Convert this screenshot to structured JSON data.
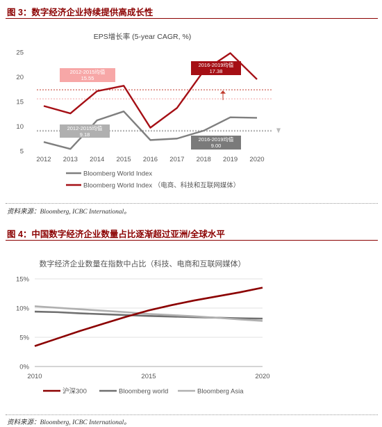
{
  "fig1": {
    "heading": "图 3：数字经济企业持续提供高成长性",
    "source": "资料来源：Bloomberg, ICBC International。",
    "chart_data": {
      "type": "line",
      "title": "EPS增长率 (5-year CAGR, %)",
      "x": [
        2012,
        2013,
        2014,
        2015,
        2016,
        2017,
        2018,
        2019,
        2020
      ],
      "ylim": [
        5,
        25
      ],
      "yticks": [
        5,
        10,
        15,
        20,
        25
      ],
      "grid": false,
      "legend_position": "bottom-left",
      "series": [
        {
          "name": "Bloomberg World Index",
          "color": "#7f7f7f",
          "values": [
            6.8,
            5.4,
            11.2,
            13.0,
            7.2,
            7.5,
            9.1,
            11.8,
            11.7
          ]
        },
        {
          "name": "Bloomberg World Index （电商、科技和互联网媒体）",
          "color": "#a50f15",
          "values": [
            14.1,
            12.6,
            17.1,
            18.2,
            9.7,
            13.7,
            21.2,
            24.8,
            19.5
          ]
        }
      ],
      "reference_lines": [
        {
          "value": 17.38,
          "color": "#c0392b"
        },
        {
          "value": 15.55,
          "color": "#f2a3a3"
        },
        {
          "value": 9.18,
          "color": "#bbbbbb"
        },
        {
          "value": 9.0,
          "color": "#9a9a9a"
        }
      ],
      "annotations": [
        {
          "text": "2012-2015均值\n15.55",
          "bg": "#f7a7a7",
          "fg": "#ffffff"
        },
        {
          "text": "2016-2019均值\n17.38",
          "bg": "#a50f15",
          "fg": "#ffffff"
        },
        {
          "text": "2012-2015均值\n9.18",
          "bg": "#b0b0b0",
          "fg": "#ffffff"
        },
        {
          "text": "2016-2019均值\n9.00",
          "bg": "#7a7a7a",
          "fg": "#ffffff"
        }
      ]
    }
  },
  "fig2": {
    "heading": "图 4：中国数字经济企业数量占比逐渐超过亚洲/全球水平",
    "source": "资料来源：Bloomberg, ICBC International。",
    "chart_data": {
      "type": "line",
      "title": "数字经济企业数量在指数中占比（科技、电商和互联网媒体）",
      "x": [
        2010,
        2015,
        2020
      ],
      "ylim": [
        0,
        15
      ],
      "yticks": [
        "0%",
        "5%",
        "10%",
        "15%"
      ],
      "grid": true,
      "legend_position": "bottom",
      "series": [
        {
          "name": "沪深300",
          "color": "#8b0000",
          "points": [
            [
              2010,
              3.5
            ],
            [
              2011,
              4.8
            ],
            [
              2012,
              6.1
            ],
            [
              2013,
              7.3
            ],
            [
              2014,
              8.5
            ],
            [
              2015,
              9.6
            ],
            [
              2016,
              10.5
            ],
            [
              2017,
              11.3
            ],
            [
              2018,
              12.0
            ],
            [
              2019,
              12.7
            ],
            [
              2020,
              13.5
            ]
          ]
        },
        {
          "name": "Bloomberg world",
          "color": "#707070",
          "points": [
            [
              2010,
              9.4
            ],
            [
              2011,
              9.3
            ],
            [
              2012,
              9.1
            ],
            [
              2013,
              8.95
            ],
            [
              2014,
              8.8
            ],
            [
              2015,
              8.65
            ],
            [
              2016,
              8.55
            ],
            [
              2017,
              8.45
            ],
            [
              2018,
              8.35
            ],
            [
              2019,
              8.25
            ],
            [
              2020,
              8.2
            ]
          ]
        },
        {
          "name": "Bloomberg Asia",
          "color": "#b0b0b0",
          "points": [
            [
              2010,
              10.3
            ],
            [
              2011,
              10.05
            ],
            [
              2012,
              9.8
            ],
            [
              2013,
              9.55
            ],
            [
              2014,
              9.3
            ],
            [
              2015,
              9.0
            ],
            [
              2016,
              8.8
            ],
            [
              2017,
              8.6
            ],
            [
              2018,
              8.35
            ],
            [
              2019,
              8.05
            ],
            [
              2020,
              7.8
            ]
          ]
        }
      ]
    }
  }
}
